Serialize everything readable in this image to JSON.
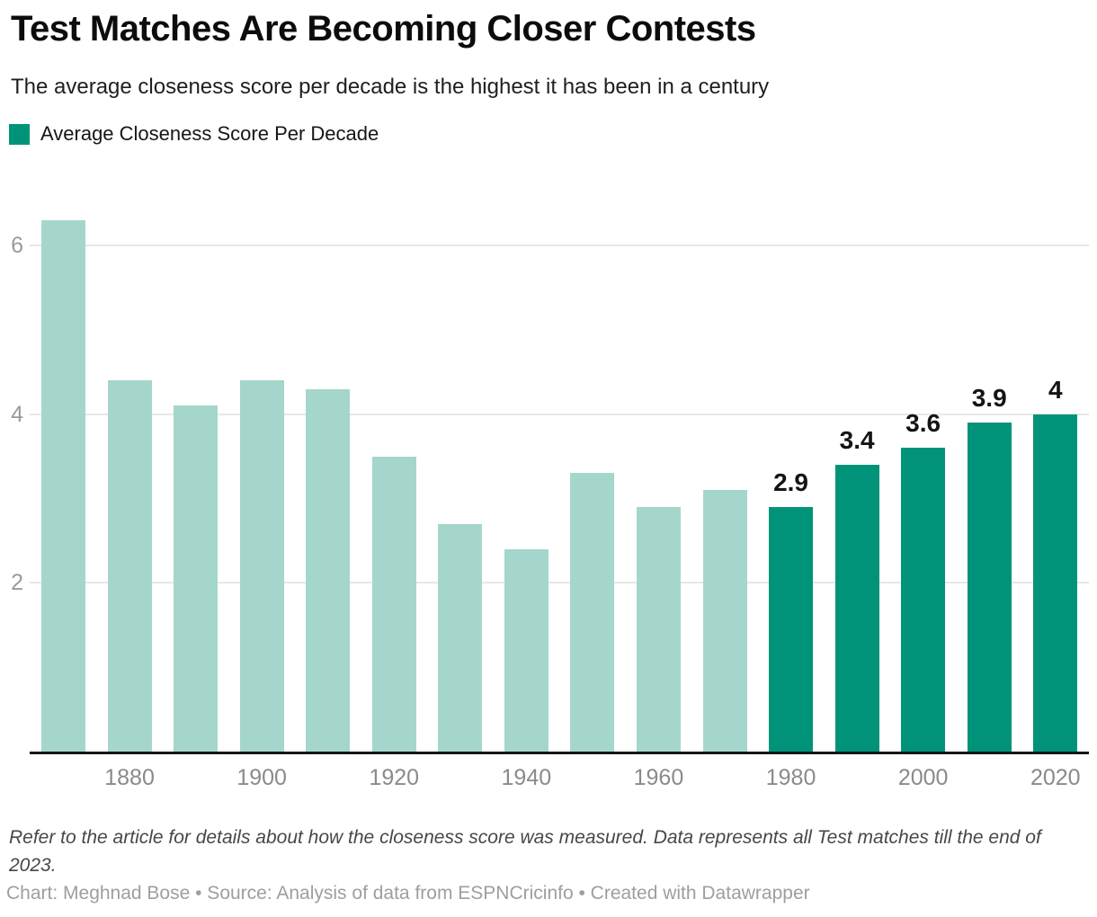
{
  "header": {
    "title": "Test Matches Are Becoming Closer Contests",
    "subtitle": "The average closeness score per decade is the highest it has been in a century"
  },
  "legend": {
    "label": "Average Closeness Score Per Decade",
    "swatch_color": "#009379"
  },
  "chart_data": {
    "type": "bar",
    "title": "Test Matches Are Becoming Closer Contests",
    "subtitle": "The average closeness score per decade is the highest it has been in a century",
    "series_name": "Average Closeness Score Per Decade",
    "categories": [
      "1870",
      "1880",
      "1890",
      "1900",
      "1910",
      "1920",
      "1930",
      "1940",
      "1950",
      "1960",
      "1970",
      "1980",
      "1990",
      "2000",
      "2010",
      "2020"
    ],
    "values": [
      6.3,
      4.4,
      4.1,
      4.4,
      4.3,
      3.5,
      2.7,
      2.4,
      3.3,
      2.9,
      3.1,
      2.9,
      3.4,
      3.6,
      3.9,
      4
    ],
    "value_labels": [
      null,
      null,
      null,
      null,
      null,
      null,
      null,
      null,
      null,
      null,
      null,
      "2.9",
      "3.4",
      "3.6",
      "3.9",
      "4"
    ],
    "highlight_from_index": 11,
    "x_axis": {
      "tick_indices": [
        1,
        3,
        5,
        7,
        9,
        11,
        13,
        15
      ],
      "tick_labels": [
        "1880",
        "1900",
        "1920",
        "1940",
        "1960",
        "1980",
        "2000",
        "2020"
      ]
    },
    "y_axis": {
      "ticks": [
        2,
        4,
        6
      ],
      "ylim": [
        0,
        6.46
      ]
    },
    "xlabel": "",
    "ylabel": "",
    "grid": "horizontal",
    "legend_position": "top-left",
    "colors": {
      "bar_light": "#a5d6cc",
      "bar_dark": "#009379",
      "gridline": "#e7e7e7",
      "axis_line": "#161616",
      "tick_label": "#8a8a8a",
      "bar_value_label": "#141414"
    }
  },
  "footer": {
    "note": "Refer to the article for details about how the closeness score was measured. Data represents all Test matches till the end of 2023.",
    "credit": "Chart: Meghnad Bose • Source: Analysis of data from ESPNCricinfo  • Created with Datawrapper"
  }
}
